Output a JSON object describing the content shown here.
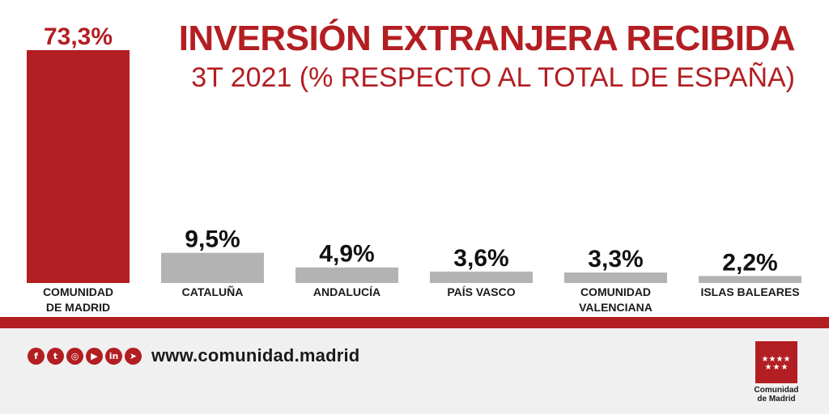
{
  "title": {
    "line1": "INVERSIÓN EXTRANJERA RECIBIDA",
    "line2": "3T 2021 (% RESPECTO AL TOTAL DE ESPAÑA)"
  },
  "chart_data": {
    "type": "bar",
    "title": "INVERSIÓN EXTRANJERA RECIBIDA",
    "subtitle": "3T 2021 (% RESPECTO AL TOTAL DE ESPAÑA)",
    "categories": [
      [
        "COMUNIDAD",
        "DE MADRID"
      ],
      [
        "CATALUÑA"
      ],
      [
        "ANDALUCÍA"
      ],
      [
        "PAÍS VASCO"
      ],
      [
        "COMUNIDAD",
        "VALENCIANA"
      ],
      [
        "ISLAS BALEARES"
      ]
    ],
    "values": [
      73.3,
      9.5,
      4.9,
      3.6,
      3.3,
      2.2
    ],
    "value_labels": [
      "73,3%",
      "9,5%",
      "4,9%",
      "3,6%",
      "3,3%",
      "2,2%"
    ],
    "highlight_index": 0,
    "colors": {
      "highlight": "#b31e22",
      "default": "#b3b3b3",
      "highlight_label": "#b31e22",
      "default_label": "#111111"
    },
    "xlabel": "",
    "ylabel": "",
    "ylim": [
      0,
      73.3
    ],
    "grid": false,
    "legend": "none"
  },
  "footer": {
    "url": "www.comunidad.madrid",
    "social_icons": [
      "facebook-icon",
      "twitter-icon",
      "instagram-icon",
      "youtube-icon",
      "linkedin-icon",
      "telegram-icon"
    ],
    "social_glyphs": [
      "f",
      "t",
      "◎",
      "▶",
      "in",
      "➤"
    ],
    "logo_text_line1": "Comunidad",
    "logo_text_line2": "de Madrid"
  },
  "colors": {
    "brand": "#b31e22",
    "footer_bg": "#f0f0f0"
  }
}
